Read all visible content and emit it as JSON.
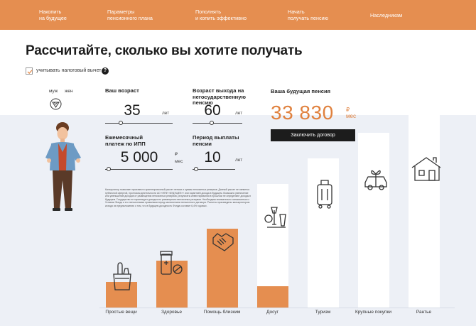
{
  "nav": {
    "items": [
      "Накопить\nна будущее",
      "Параметры\nпенсионного плана",
      "Пополнять\nи копить эффективно",
      "Начать\nполучать пенсию",
      "Наследникам"
    ]
  },
  "headline": "Рассчитайте, сколько вы хотите получать",
  "tax": {
    "label": "учитывать налоговый вычет",
    "checked": true,
    "help": "?"
  },
  "gender": {
    "male": "муж",
    "female": "жен",
    "selected": "муж"
  },
  "fields": {
    "age": {
      "label": "Ваш возраст",
      "value": "35",
      "unit": "лет",
      "slider_pct": 20
    },
    "retire_age": {
      "label": "Возраст выхода на негосударственную пенсию",
      "value": "60",
      "unit": "лет",
      "slider_pct": 35
    },
    "monthly": {
      "label": "Ежемесячный платеж по ИПП",
      "value": "5 000",
      "unit_symbol": "₽",
      "unit": "мес",
      "slider_pct": 3
    },
    "period": {
      "label": "Период выплаты пенсии",
      "value": "10",
      "unit": "лет",
      "slider_pct": 2
    }
  },
  "pension": {
    "label": "Ваша будущая пенсия",
    "value": "33 830",
    "unit_symbol": "₽",
    "unit": "мес"
  },
  "contract_button": "Заключить договор",
  "disclaimer": "Калькулятор позволяет произвести ориентировочный расчет пенсии и суммы пенсионных резервов. Данный расчет не является публичной офертой, прогнозом деятельности АО «НПФ «БУДУЩЕЕ»» или гарантией дохода в будущем. Возможно увеличение или уменьшение доходов от размещения пенсионных резервов, результаты инвестирования в прошлом не определяют доходы в будущем. Государство не гарантирует доходность размещения пенсионных резервов. Необходимо внимательно ознакомиться с Уставом Фонда и его пенсионными правилами перед заключением пенсионного договора. Расчеты произведены калькулятором исходя из предположения о том, что в будущем доходность Фонда составит 6,4% годовых.",
  "chart_data": {
    "type": "bar",
    "categories": [
      "Простые вещи",
      "Здоровье",
      "Помощь близким",
      "Досуг",
      "Туризм",
      "Крупные покупки",
      "Рантье"
    ],
    "levels": [
      0.12,
      0.22,
      0.37,
      0.58,
      0.7,
      0.82,
      0.91
    ],
    "filled": [
      0.12,
      0.22,
      0.37,
      0.1,
      0.0,
      0.0,
      0.0
    ],
    "icons": [
      "groceries-icon",
      "medicine-icon",
      "handshake-icon",
      "leisure-icon",
      "suitcase-icon",
      "gift-car-icon",
      "house-icon"
    ],
    "colors": {
      "filled": "#e58e50",
      "empty": "#ffffff"
    }
  },
  "colors": {
    "accent": "#e58e50",
    "pension": "#e0813e",
    "background": "#edf0f6",
    "button": "#1c1c1c"
  }
}
